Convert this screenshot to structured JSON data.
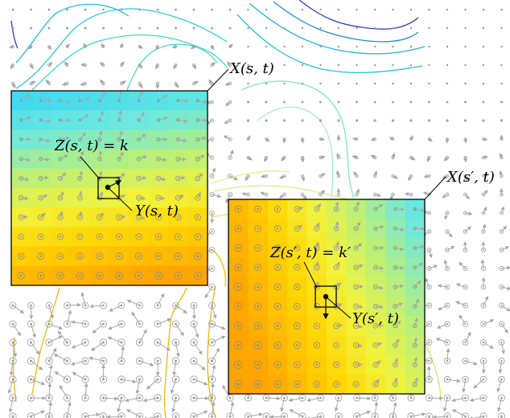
{
  "labels": {
    "x1": "X(s, t)",
    "z1": "Z(s, t) = k",
    "y1": "Y(s, t)",
    "x2": "X(s′, t)",
    "z2": "Z(s′, t) = k′",
    "y2": "Y(s′, t)"
  },
  "colors": {
    "contour_high": "#2a3cc8",
    "contour_mid": "#1fb6d6",
    "contour_low": "#f0b800",
    "arrow": "#a8a8a8",
    "dot": "#9a9a9a",
    "box": "#000000"
  }
}
